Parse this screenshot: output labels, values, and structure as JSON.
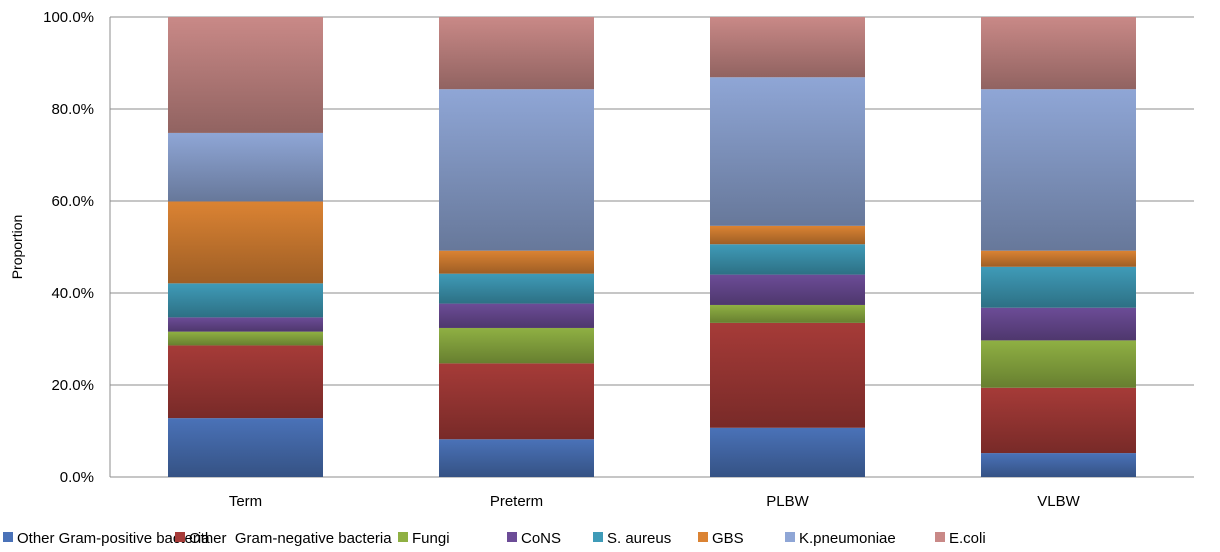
{
  "chart_data": {
    "type": "bar",
    "stacked": true,
    "categories": [
      "Term",
      "Preterm",
      "PLBW",
      "VLBW"
    ],
    "ylabel": "Proportion",
    "ylim": [
      0,
      100
    ],
    "yticks": [
      "0.0%",
      "20.0%",
      "40.0%",
      "60.0%",
      "80.0%",
      "100.0%"
    ],
    "grid": true,
    "legend_position": "bottom",
    "series": [
      {
        "name": "Other Gram-positive bacteria",
        "color": "#4A72B8",
        "values": [
          12.8,
          8.2,
          10.7,
          5.2
        ]
      },
      {
        "name": "Other  Gram-negative bacteria",
        "color": "#A63B38",
        "values": [
          15.8,
          16.5,
          22.8,
          14.2
        ]
      },
      {
        "name": "Fungi",
        "color": "#8FB043",
        "values": [
          3.0,
          7.7,
          3.9,
          10.3
        ]
      },
      {
        "name": "CoNS",
        "color": "#6C4C97",
        "values": [
          3.1,
          5.3,
          6.6,
          7.1
        ]
      },
      {
        "name": "S. aureus",
        "color": "#3F9BB8",
        "values": [
          7.4,
          6.5,
          6.6,
          8.9
        ]
      },
      {
        "name": "GBS",
        "color": "#DB8333",
        "values": [
          17.8,
          5.0,
          4.0,
          3.5
        ]
      },
      {
        "name": "K.pneumoniae",
        "color": "#8FA6D6",
        "values": [
          14.9,
          35.1,
          32.3,
          35.1
        ]
      },
      {
        "name": "E.coli",
        "color": "#C98987",
        "values": [
          25.2,
          15.7,
          13.1,
          15.7
        ]
      }
    ]
  }
}
